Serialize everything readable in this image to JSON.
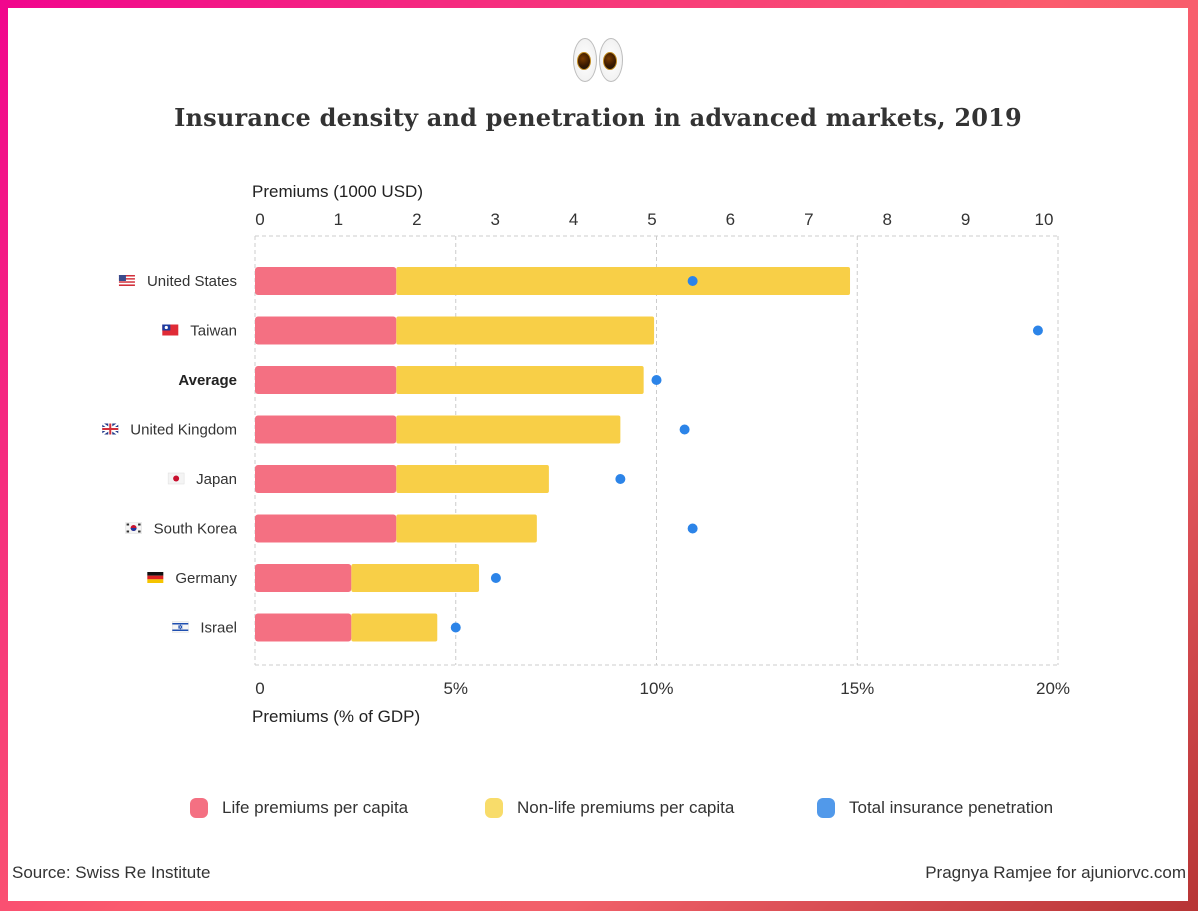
{
  "header": {
    "emoji_icon": "eyes-emoji",
    "title": "Insurance density and penetration in advanced markets, 2019"
  },
  "colors": {
    "life": "#f47082",
    "nonlife": "#f8cf47",
    "penetration": "#2c84e8",
    "grid": "#cccccc",
    "legend_life": "#f47082",
    "legend_nonlife": "#f8dc6a",
    "legend_penetration": "#5199ea"
  },
  "legend": {
    "items": [
      {
        "label": "Life premiums per capita",
        "color_key": "legend_life"
      },
      {
        "label": "Non-life premiums per capita",
        "color_key": "legend_nonlife"
      },
      {
        "label": "Total insurance penetration",
        "color_key": "legend_penetration"
      }
    ]
  },
  "footer": {
    "source": "Source: Swiss Re Institute",
    "credit": "Pragnya Ramjee for ajuniorvc.com"
  },
  "chart_data": {
    "type": "bar",
    "subtype": "stacked-horizontal-bar-with-dot-overlay",
    "title": "Insurance density and penetration in advanced markets, 2019",
    "categories": [
      "United States",
      "Taiwan",
      "Average",
      "United Kingdom",
      "Japan",
      "South Korea",
      "Germany",
      "Israel"
    ],
    "category_flags": [
      "us-flag-icon",
      "taiwan-flag-icon",
      "",
      "uk-flag-icon",
      "japan-flag-icon",
      "south-korea-flag-icon",
      "germany-flag-icon",
      "israel-flag-icon"
    ],
    "category_bold": [
      false,
      false,
      true,
      false,
      false,
      false,
      false,
      false
    ],
    "top_axis": {
      "label": "Premiums (1000 USD)",
      "range": [
        0,
        10
      ],
      "ticks": [
        "0",
        "1",
        "2",
        "3",
        "4",
        "5",
        "6",
        "7",
        "8",
        "9",
        "10"
      ]
    },
    "bottom_axis": {
      "label": "Premiums (% of GDP)",
      "range": [
        0,
        20
      ],
      "ticks": [
        "0",
        "5%",
        "10%",
        "15%",
        "20%"
      ],
      "tick_values": [
        0,
        5,
        10,
        15,
        20
      ]
    },
    "grid": true,
    "legend_position": "bottom",
    "series": [
      {
        "name": "Life premiums per capita",
        "axis": "top",
        "unit": "1000 USD",
        "values": [
          1.76,
          1.76,
          1.76,
          1.76,
          1.76,
          1.76,
          1.2,
          1.2
        ]
      },
      {
        "name": "Non-life premiums per capita",
        "axis": "top",
        "unit": "1000 USD",
        "values": [
          5.65,
          3.21,
          3.08,
          2.79,
          1.9,
          1.75,
          1.59,
          1.07
        ]
      },
      {
        "name": "Total insurance penetration",
        "axis": "bottom",
        "unit": "% of GDP",
        "type": "scatter",
        "values": [
          10.9,
          19.5,
          10.0,
          10.7,
          9.1,
          10.9,
          6.0,
          5.0
        ]
      }
    ]
  }
}
